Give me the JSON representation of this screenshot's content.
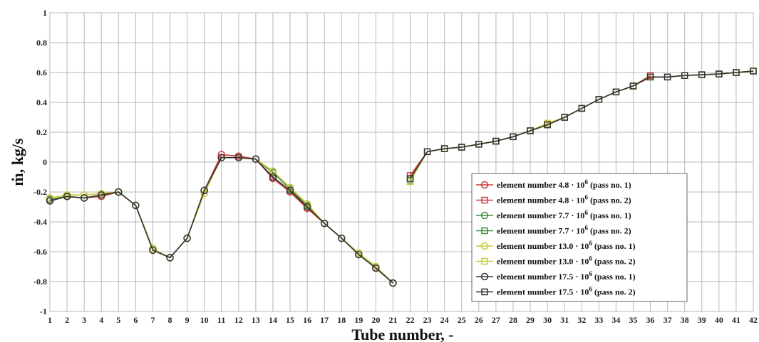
{
  "chart_data": {
    "type": "line",
    "title": "",
    "xlabel": "Tube number, -",
    "ylabel": "ṁ, kg/s",
    "xlim": [
      1,
      42
    ],
    "ylim": [
      -1,
      1
    ],
    "x_ticks": [
      1,
      2,
      3,
      4,
      5,
      6,
      7,
      8,
      9,
      10,
      11,
      12,
      13,
      14,
      15,
      16,
      17,
      18,
      19,
      20,
      21,
      22,
      23,
      24,
      25,
      26,
      27,
      28,
      29,
      30,
      31,
      32,
      33,
      34,
      35,
      36,
      37,
      38,
      39,
      40,
      41,
      42
    ],
    "y_ticks": [
      1,
      0.8,
      0.6,
      0.4,
      0.2,
      0,
      -0.2,
      -0.4,
      -0.6,
      -0.8,
      -1
    ],
    "y_tick_labels": [
      "1",
      "0.8",
      "0.6",
      "0.4",
      "0.2",
      "0",
      "-0.2",
      "-0.4",
      "-0.6",
      "-0.8",
      "-1"
    ],
    "grid": true,
    "legend_position": "bottom-right",
    "series": [
      {
        "name": "element number 4.8·10^6 (pass no. 1)",
        "legend_prefix": "element number 4.8 · 10",
        "legend_exp": "6",
        "legend_suffix": "(pass no. 1)",
        "color": "#d23a3a",
        "marker": "circle",
        "x": [
          1,
          2,
          3,
          4,
          5,
          6,
          7,
          8,
          9,
          10,
          11,
          12,
          13,
          14,
          15,
          16,
          17,
          18,
          19,
          20,
          21
        ],
        "y": [
          -0.25,
          -0.23,
          -0.24,
          -0.23,
          -0.2,
          -0.29,
          -0.58,
          -0.64,
          -0.51,
          -0.19,
          0.05,
          0.04,
          0.02,
          -0.11,
          -0.2,
          -0.31,
          -0.41,
          -0.51,
          -0.61,
          -0.71,
          -0.81
        ]
      },
      {
        "name": "element number 4.8·10^6 (pass no. 2)",
        "legend_prefix": "element number 4.8 · 10",
        "legend_exp": "6",
        "legend_suffix": "(pass no. 2)",
        "color": "#d23a3a",
        "marker": "square",
        "x": [
          22,
          23,
          24,
          25,
          26,
          27,
          28,
          29,
          30,
          31,
          32,
          33,
          34,
          35,
          36
        ],
        "y": [
          -0.09,
          0.07,
          0.09,
          0.1,
          0.12,
          0.14,
          0.17,
          0.21,
          0.25,
          0.3,
          0.36,
          0.42,
          0.47,
          0.51,
          0.58
        ]
      },
      {
        "name": "element number 7.7·10^6 (pass no. 1)",
        "legend_prefix": "element number 7.7 · 10",
        "legend_exp": "6",
        "legend_suffix": "(pass no. 1)",
        "color": "#3f8f3f",
        "marker": "circle",
        "x": [
          1,
          2,
          3,
          4,
          5,
          6,
          7,
          8,
          9,
          10,
          11,
          12,
          13,
          14,
          15,
          16,
          17,
          18,
          19,
          20,
          21
        ],
        "y": [
          -0.25,
          -0.23,
          -0.24,
          -0.22,
          -0.2,
          -0.29,
          -0.58,
          -0.64,
          -0.51,
          -0.19,
          0.03,
          0.03,
          0.02,
          -0.07,
          -0.18,
          -0.29,
          -0.41,
          -0.51,
          -0.61,
          -0.7,
          -0.81
        ]
      },
      {
        "name": "element number 7.7·10^6 (pass no. 2)",
        "legend_prefix": "element number 7.7 · 10",
        "legend_exp": "6",
        "legend_suffix": "(pass no. 2)",
        "color": "#3f8f3f",
        "marker": "square",
        "x": [
          22,
          23,
          24,
          25,
          26,
          27,
          28,
          29,
          30,
          31,
          32,
          33,
          34,
          35,
          36,
          37,
          38,
          39,
          40,
          41,
          42
        ],
        "y": [
          -0.12,
          0.07,
          0.09,
          0.1,
          0.12,
          0.14,
          0.17,
          0.21,
          0.25,
          0.3,
          0.36,
          0.42,
          0.47,
          0.51,
          0.57,
          0.57,
          0.58,
          0.585,
          0.59,
          0.6,
          0.61
        ]
      },
      {
        "name": "element number 13.0·10^6 (pass no. 1)",
        "legend_prefix": "element number 13.0 · 10",
        "legend_exp": "6",
        "legend_suffix": "(pass no. 1)",
        "color": "#c9c93a",
        "marker": "circle",
        "x": [
          1,
          2,
          3,
          4,
          5,
          6,
          7,
          8,
          9,
          10,
          11,
          12,
          13,
          14,
          15,
          16,
          17,
          18,
          19,
          20,
          21
        ],
        "y": [
          -0.24,
          -0.22,
          -0.22,
          -0.21,
          -0.2,
          -0.29,
          -0.58,
          -0.64,
          -0.51,
          -0.21,
          0.03,
          0.03,
          0.02,
          -0.06,
          -0.17,
          -0.28,
          -0.41,
          -0.51,
          -0.61,
          -0.7,
          -0.81
        ]
      },
      {
        "name": "element number 13.0·10^6 (pass no. 2)",
        "legend_prefix": "element number 13.0 · 10",
        "legend_exp": "6",
        "legend_suffix": "(pass no. 2)",
        "color": "#c9c93a",
        "marker": "square",
        "x": [
          22,
          23,
          24,
          25,
          26,
          27,
          28,
          29,
          30,
          31,
          32,
          33,
          34,
          35,
          36,
          37,
          38,
          39,
          40,
          41,
          42
        ],
        "y": [
          -0.13,
          0.07,
          0.09,
          0.1,
          0.12,
          0.14,
          0.17,
          0.21,
          0.26,
          0.3,
          0.36,
          0.42,
          0.47,
          0.51,
          0.57,
          0.57,
          0.58,
          0.585,
          0.59,
          0.6,
          0.61
        ]
      },
      {
        "name": "element number 17.5·10^6 (pass no. 1)",
        "legend_prefix": "element number 17.5 · 10",
        "legend_exp": "6",
        "legend_suffix": "(pass no. 1)",
        "color": "#333333",
        "marker": "circle",
        "x": [
          1,
          2,
          3,
          4,
          5,
          6,
          7,
          8,
          9,
          10,
          11,
          12,
          13,
          14,
          15,
          16,
          17,
          18,
          19,
          20,
          21
        ],
        "y": [
          -0.26,
          -0.23,
          -0.24,
          -0.22,
          -0.2,
          -0.29,
          -0.59,
          -0.64,
          -0.51,
          -0.19,
          0.03,
          0.03,
          0.02,
          -0.1,
          -0.19,
          -0.3,
          -0.41,
          -0.51,
          -0.62,
          -0.71,
          -0.81
        ]
      },
      {
        "name": "element number 17.5·10^6 (pass no. 2)",
        "legend_prefix": "element number 17.5 · 10",
        "legend_exp": "6",
        "legend_suffix": "(pass no. 2)",
        "color": "#333333",
        "marker": "square",
        "x": [
          22,
          23,
          24,
          25,
          26,
          27,
          28,
          29,
          30,
          31,
          32,
          33,
          34,
          35,
          36,
          37,
          38,
          39,
          40,
          41,
          42
        ],
        "y": [
          -0.11,
          0.07,
          0.09,
          0.1,
          0.12,
          0.14,
          0.17,
          0.21,
          0.25,
          0.3,
          0.36,
          0.42,
          0.47,
          0.51,
          0.57,
          0.57,
          0.58,
          0.585,
          0.59,
          0.6,
          0.61
        ]
      }
    ]
  }
}
